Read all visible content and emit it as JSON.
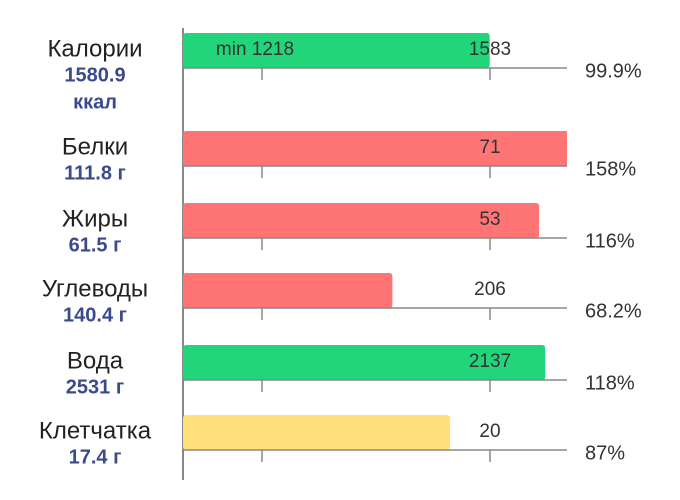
{
  "xlim": [
    0,
    100
  ],
  "rows": [
    {
      "name": "Калории",
      "amount_lines": [
        "1580.9",
        "ккал"
      ],
      "target": 1583,
      "min_label": "min 1218",
      "percent": 99.9,
      "percent_label": "99.9%",
      "color": "#22d47a"
    },
    {
      "name": "Белки",
      "amount_lines": [
        "111.8 г"
      ],
      "target": 71,
      "percent": 158,
      "percent_label": "158%",
      "color": "#ff7474"
    },
    {
      "name": "Жиры",
      "amount_lines": [
        "61.5 г"
      ],
      "target": 53,
      "percent": 116,
      "percent_label": "116%",
      "color": "#ff7474"
    },
    {
      "name": "Углеводы",
      "amount_lines": [
        "140.4 г"
      ],
      "target": 206,
      "percent": 68.2,
      "percent_label": "68.2%",
      "color": "#ff7474"
    },
    {
      "name": "Вода",
      "amount_lines": [
        "2531 г"
      ],
      "target": 2137,
      "percent": 118,
      "percent_label": "118%",
      "color": "#22d47a"
    },
    {
      "name": "Клетчатка",
      "amount_lines": [
        "17.4 г"
      ],
      "target": 20,
      "percent": 87,
      "percent_label": "87%",
      "color": "#ffe07a"
    }
  ]
}
